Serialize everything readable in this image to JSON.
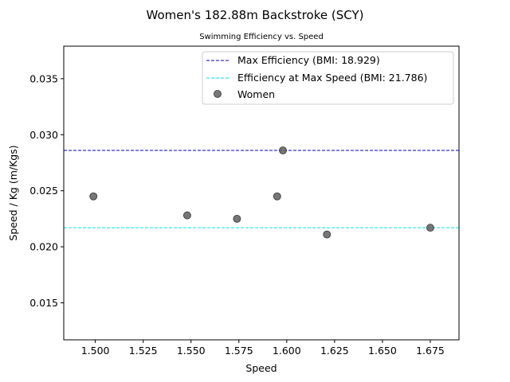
{
  "chart_data": {
    "type": "scatter",
    "title": "Women's 182.88m Backstroke (SCY)",
    "subtitle": "Swimming Efficiency vs. Speed",
    "xlabel": "Speed",
    "ylabel": "Speed / Kg (m/Kgs)",
    "xlim": [
      1.4835,
      1.69
    ],
    "ylim": [
      0.0117,
      0.0379
    ],
    "xticks": [
      "1.500",
      "1.525",
      "1.550",
      "1.575",
      "1.600",
      "1.625",
      "1.650",
      "1.675"
    ],
    "yticks": [
      "0.015",
      "0.020",
      "0.025",
      "0.030",
      "0.035"
    ],
    "grid": false,
    "legend_position": "upper-right",
    "series": [
      {
        "name": "Women",
        "color": "#555555",
        "points": [
          {
            "x": 1.499,
            "y": 0.0245
          },
          {
            "x": 1.548,
            "y": 0.0228
          },
          {
            "x": 1.574,
            "y": 0.0225
          },
          {
            "x": 1.595,
            "y": 0.0245
          },
          {
            "x": 1.598,
            "y": 0.0286
          },
          {
            "x": 1.621,
            "y": 0.0211
          },
          {
            "x": 1.675,
            "y": 0.0217
          }
        ]
      }
    ],
    "reference_lines": [
      {
        "name": "Max Efficiency (BMI: 18.929)",
        "y": 0.0286,
        "color": "#0000cc",
        "style": "dashed"
      },
      {
        "name": "Efficiency at Max Speed (BMI: 21.786)",
        "y": 0.0217,
        "color": "#00e5ee",
        "style": "dashed"
      }
    ]
  }
}
